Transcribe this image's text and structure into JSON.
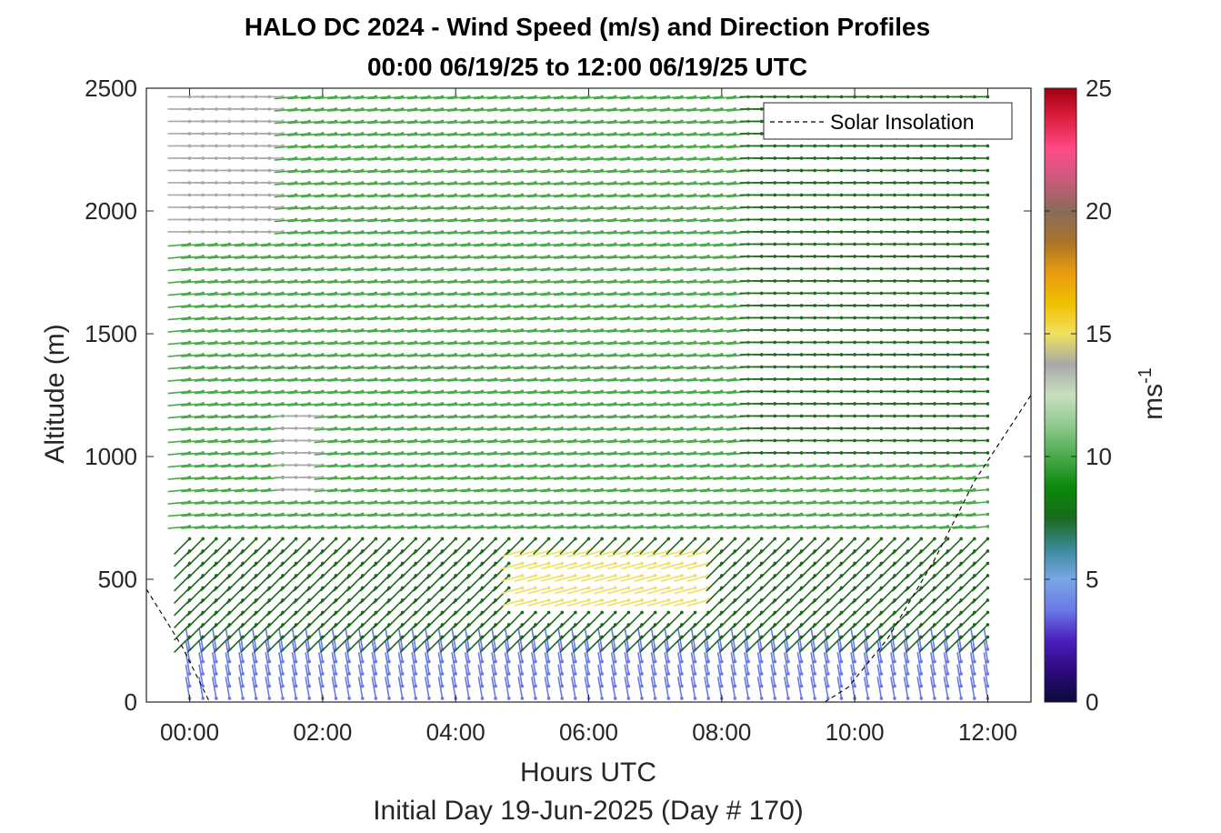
{
  "chart_data": {
    "type": "wind_barb_profile",
    "title_line1": "HALO DC 2024 - Wind Speed (m/s) and Direction Profiles",
    "title_line2": "00:00 06/19/25 to 12:00 06/19/25  UTC",
    "xlabel": "Hours UTC",
    "xlabel2": "Initial Day 19-Jun-2025 (Day # 170)",
    "ylabel": "Altitude (m)",
    "x_ticks": [
      "00:00",
      "02:00",
      "04:00",
      "06:00",
      "08:00",
      "10:00",
      "12:00"
    ],
    "x_tick_hours": [
      0,
      2,
      4,
      6,
      8,
      10,
      12
    ],
    "xlim_hours": [
      -0.65,
      12.65
    ],
    "y_ticks": [
      "0",
      "500",
      "1000",
      "1500",
      "2000",
      "2500"
    ],
    "y_tick_values": [
      0,
      500,
      1000,
      1500,
      2000,
      2500
    ],
    "ylim": [
      0,
      2500
    ],
    "grid": false,
    "colorbar": {
      "label": "ms",
      "label_exponent": "-1",
      "ticks": [
        "0",
        "5",
        "10",
        "15",
        "20",
        "25"
      ],
      "tick_values": [
        0,
        5,
        10,
        15,
        20,
        25
      ],
      "range": [
        0,
        25
      ],
      "colors": [
        "#0a0a3a",
        "#2b0a7a",
        "#4a1ec0",
        "#6a7ae6",
        "#7aa6e8",
        "#3a8a9a",
        "#1a6a1a",
        "#0a8a0a",
        "#4aaa4a",
        "#8ec88e",
        "#c8e0c0",
        "#a8a8a8",
        "#f0e060",
        "#f0c000",
        "#e89a10",
        "#a8742a",
        "#8a6a5a",
        "#c85a7a",
        "#ff4a8a",
        "#e02040",
        "#a00010"
      ]
    },
    "legend": {
      "entries": [
        "Solar Insolation"
      ],
      "placement": "top-right"
    },
    "series": [
      {
        "name": "Solar Insolation",
        "style": "dashed",
        "color": "#000000",
        "x": [
          -0.65,
          -0.35,
          -0.1,
          0.3,
          9.55,
          9.9,
          10.5,
          11.2,
          11.8,
          12.65
        ],
        "y": [
          460,
          330,
          220,
          0,
          0,
          60,
          260,
          580,
          900,
          1250
        ]
      }
    ],
    "wind_field": {
      "time_step_hours": 0.2,
      "altitude_step_m": 50,
      "start_altitude_m": 15,
      "max_altitude_m": 2480,
      "speed_regions": [
        {
          "t_range": [
            0,
            12
          ],
          "alt_range": [
            0,
            250
          ],
          "speed": 3.5,
          "direction_deg": 350
        },
        {
          "t_range": [
            0,
            12
          ],
          "alt_range": [
            250,
            700
          ],
          "speed": 8.0,
          "direction_deg": 225
        },
        {
          "t_range": [
            0,
            12
          ],
          "alt_range": [
            700,
            2500
          ],
          "speed": 9.5,
          "direction_deg": 265
        },
        {
          "t_range": [
            5,
            8
          ],
          "alt_range": [
            400,
            650
          ],
          "speed": 14.5,
          "direction_deg": 255
        },
        {
          "t_range": [
            0,
            1.5
          ],
          "alt_range": [
            1900,
            2500
          ],
          "speed": 14.0,
          "direction_deg": 270
        },
        {
          "t_range": [
            1.5,
            2
          ],
          "alt_range": [
            850,
            1200
          ],
          "speed": 13.5,
          "direction_deg": 270
        },
        {
          "t_range": [
            8.5,
            12
          ],
          "alt_range": [
            1000,
            2500
          ],
          "speed": 7.0,
          "direction_deg": 270
        }
      ]
    }
  }
}
